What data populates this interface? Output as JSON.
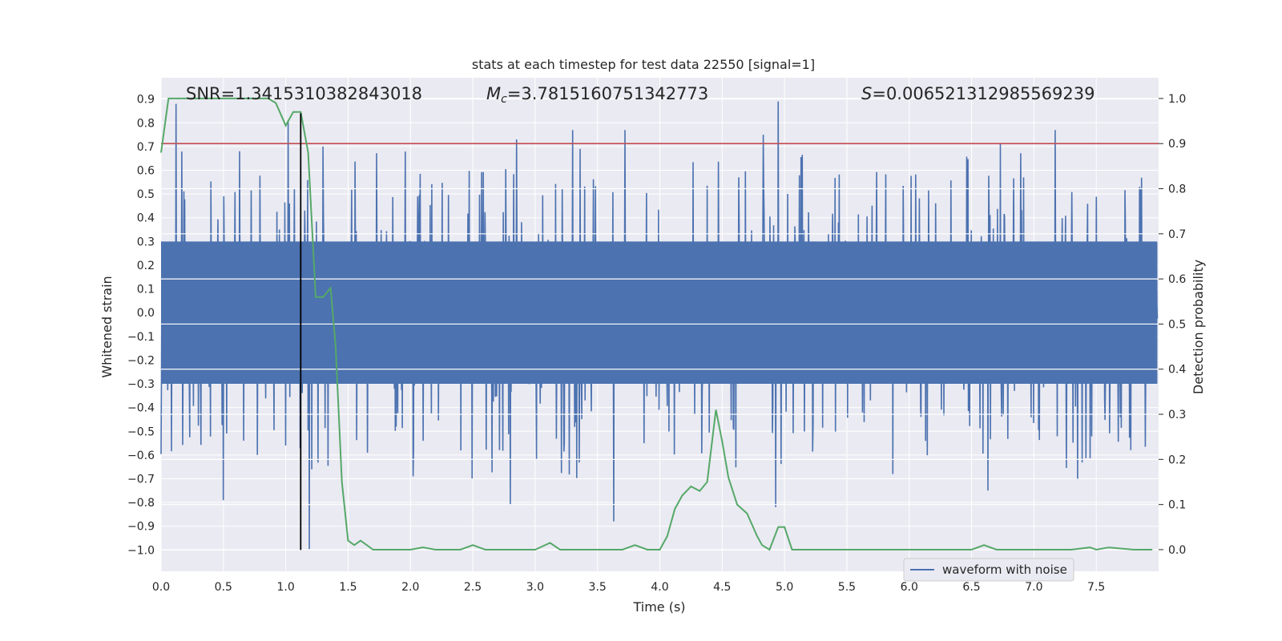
{
  "chart_data": {
    "type": "line",
    "title": "stats at each timestep for test data 22550 [signal=1]",
    "xlabel": "Time (s)",
    "ylabel_left": "Whitened strain",
    "ylabel_right": "Detection probability",
    "xlim": [
      0.0,
      8.0
    ],
    "ylim_left": [
      -1.09,
      0.99
    ],
    "ylim_right": [
      -0.048,
      1.046
    ],
    "xticks": [
      0.0,
      0.5,
      1.0,
      1.5,
      2.0,
      2.5,
      3.0,
      3.5,
      4.0,
      4.5,
      5.0,
      5.5,
      6.0,
      6.5,
      7.0,
      7.5
    ],
    "xtick_labels": [
      "0.0",
      "0.5",
      "1.0",
      "1.5",
      "2.0",
      "2.5",
      "3.0",
      "3.5",
      "4.0",
      "4.5",
      "5.0",
      "5.5",
      "6.0",
      "6.5",
      "7.0",
      "7.5"
    ],
    "yticks_left": [
      0.9,
      0.8,
      0.7,
      0.6,
      0.5,
      0.4,
      0.3,
      0.2,
      0.1,
      0.0,
      -0.1,
      -0.2,
      -0.3,
      -0.4,
      -0.5,
      -0.6,
      -0.7,
      -0.8,
      -0.9,
      -1.0
    ],
    "ytick_labels_left": [
      "0.9",
      "0.8",
      "0.7",
      "0.6",
      "0.5",
      "0.4",
      "0.3",
      "0.2",
      "0.1",
      "0.0",
      "−0.1",
      "−0.2",
      "−0.3",
      "−0.4",
      "−0.5",
      "−0.6",
      "−0.7",
      "−0.8",
      "−0.9",
      "−1.0"
    ],
    "yticks_right": [
      1.0,
      0.9,
      0.8,
      0.7,
      0.6,
      0.5,
      0.4,
      0.3,
      0.2,
      0.1,
      0.0
    ],
    "ytick_labels_right": [
      "1.0",
      "0.9",
      "0.8",
      "0.7",
      "0.6",
      "0.5",
      "0.4",
      "0.3",
      "0.2",
      "0.1",
      "0.0"
    ],
    "annotations": {
      "snr": "SNR=1.3415310382843018",
      "mc_symbol": "M",
      "mc_sub": "c",
      "mc_value": "=3.7815160751342773",
      "s_symbol": "S",
      "s_value": "=0.006521312985569239"
    },
    "threshold": {
      "value": 0.9,
      "axis": "right",
      "color": "#c44e52"
    },
    "vertical_marker": {
      "x": 1.12,
      "color": "#000000"
    },
    "series": [
      {
        "name": "waveform with noise",
        "axis": "left",
        "color": "#4c72b0",
        "kind": "noise",
        "core_amplitude": 0.3,
        "x_range": [
          0.0,
          7.99
        ],
        "min": -1.0,
        "max": 0.89,
        "spikes": [
          {
            "x": 0.12,
            "y": 0.88
          },
          {
            "x": 0.5,
            "y": -0.79
          },
          {
            "x": 0.63,
            "y": 0.68
          },
          {
            "x": 1.02,
            "y": 0.81
          },
          {
            "x": 1.19,
            "y": -1.0
          },
          {
            "x": 1.3,
            "y": 0.7
          },
          {
            "x": 2.02,
            "y": -0.69
          },
          {
            "x": 2.85,
            "y": 0.73
          },
          {
            "x": 2.8,
            "y": -0.81
          },
          {
            "x": 3.3,
            "y": 0.77
          },
          {
            "x": 3.63,
            "y": -0.88
          },
          {
            "x": 3.72,
            "y": 0.77
          },
          {
            "x": 4.83,
            "y": 0.75
          },
          {
            "x": 4.95,
            "y": 0.89
          },
          {
            "x": 4.93,
            "y": -0.82
          },
          {
            "x": 5.87,
            "y": -0.68
          },
          {
            "x": 6.63,
            "y": -0.75
          },
          {
            "x": 6.73,
            "y": 0.71
          },
          {
            "x": 7.17,
            "y": 0.77
          },
          {
            "x": 7.35,
            "y": -0.7
          }
        ]
      },
      {
        "name": "detection probability",
        "axis": "right",
        "color": "#55a868",
        "x": [
          0.0,
          0.06,
          0.1,
          0.2,
          0.3,
          0.4,
          0.5,
          0.6,
          0.7,
          0.8,
          0.86,
          0.92,
          1.0,
          1.06,
          1.12,
          1.18,
          1.24,
          1.3,
          1.36,
          1.4,
          1.45,
          1.5,
          1.55,
          1.6,
          1.65,
          1.7,
          1.8,
          1.9,
          2.0,
          2.1,
          2.2,
          2.3,
          2.4,
          2.5,
          2.6,
          2.7,
          2.8,
          2.9,
          3.0,
          3.12,
          3.2,
          3.3,
          3.5,
          3.7,
          3.8,
          3.9,
          4.0,
          4.06,
          4.12,
          4.18,
          4.25,
          4.32,
          4.38,
          4.45,
          4.5,
          4.55,
          4.62,
          4.7,
          4.78,
          4.82,
          4.88,
          4.95,
          5.0,
          5.06,
          5.12,
          5.2,
          5.5,
          5.8,
          6.0,
          6.3,
          6.5,
          6.6,
          6.7,
          6.8,
          7.0,
          7.2,
          7.3,
          7.45,
          7.5,
          7.6,
          7.8,
          7.95
        ],
        "values": [
          0.88,
          1.0,
          1.0,
          1.0,
          1.0,
          1.0,
          1.0,
          1.0,
          1.0,
          1.0,
          1.0,
          0.99,
          0.94,
          0.97,
          0.97,
          0.88,
          0.56,
          0.56,
          0.58,
          0.45,
          0.15,
          0.02,
          0.01,
          0.02,
          0.01,
          0.0,
          0.0,
          0.0,
          0.0,
          0.005,
          0.0,
          0.0,
          0.0,
          0.01,
          0.0,
          0.0,
          0.0,
          0.0,
          0.0,
          0.015,
          0.0,
          0.0,
          0.0,
          0.0,
          0.01,
          0.0,
          0.0,
          0.03,
          0.09,
          0.12,
          0.14,
          0.13,
          0.15,
          0.31,
          0.24,
          0.16,
          0.1,
          0.08,
          0.03,
          0.01,
          0.0,
          0.05,
          0.05,
          0.0,
          0.0,
          0.0,
          0.0,
          0.0,
          0.0,
          0.0,
          0.0,
          0.01,
          0.0,
          0.0,
          0.0,
          0.0,
          0.0,
          0.005,
          0.0,
          0.005,
          0.0,
          0.0
        ]
      }
    ],
    "legend": {
      "label": "waveform with noise",
      "placement": "bottom-right"
    }
  },
  "colors": {
    "axes_bg": "#eaeaf2",
    "grid": "#ffffff",
    "waveform": "#4c72b0",
    "probability": "#55a868",
    "threshold": "#c44e52",
    "marker": "#000000"
  }
}
